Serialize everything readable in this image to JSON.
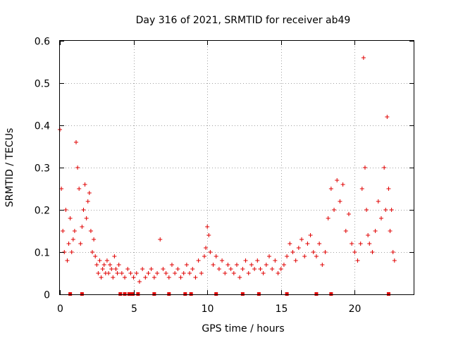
{
  "chart_data": {
    "type": "scatter",
    "title": "Day 316 of 2021, SRMTID for receiver ab49",
    "xlabel": "GPS time / hours",
    "ylabel": "SRMTID / TECUs",
    "xlim": [
      0,
      24
    ],
    "ylim": [
      0,
      0.6
    ],
    "x_ticks": [
      0,
      5,
      10,
      15,
      20
    ],
    "y_ticks": [
      0,
      0.1,
      0.2,
      0.3,
      0.4,
      0.5,
      0.6
    ],
    "x_tick_labels": [
      "0",
      "5",
      "10",
      "15",
      "20"
    ],
    "y_tick_labels": [
      "0",
      "0.1",
      "0.2",
      "0.3",
      "0.4",
      "0.5",
      "0.6"
    ],
    "grid": true,
    "marker": "plus",
    "color": "#e00000",
    "series": [
      {
        "name": "SRMTID",
        "x": [
          0.0,
          0.1,
          0.2,
          0.3,
          0.4,
          0.5,
          0.6,
          0.7,
          0.8,
          0.9,
          1.0,
          1.1,
          1.2,
          1.3,
          1.4,
          1.5,
          1.6,
          1.7,
          1.8,
          1.9,
          2.0,
          2.1,
          2.2,
          2.3,
          2.4,
          2.5,
          2.6,
          2.7,
          2.8,
          2.9,
          3.0,
          3.1,
          3.2,
          3.3,
          3.4,
          3.5,
          3.6,
          3.7,
          3.8,
          3.9,
          4.0,
          4.2,
          4.4,
          4.6,
          4.8,
          5.0,
          5.2,
          5.4,
          5.6,
          5.8,
          6.0,
          6.2,
          6.4,
          6.6,
          6.8,
          7.0,
          7.2,
          7.4,
          7.6,
          7.8,
          8.0,
          8.2,
          8.4,
          8.6,
          8.8,
          9.0,
          9.2,
          9.4,
          9.6,
          9.8,
          9.9,
          10.0,
          10.1,
          10.2,
          10.4,
          10.6,
          10.8,
          11.0,
          11.2,
          11.4,
          11.6,
          11.8,
          12.0,
          12.2,
          12.4,
          12.6,
          12.8,
          13.0,
          13.2,
          13.4,
          13.6,
          13.8,
          14.0,
          14.2,
          14.4,
          14.6,
          14.8,
          15.0,
          15.2,
          15.4,
          15.6,
          15.8,
          16.0,
          16.2,
          16.4,
          16.6,
          16.8,
          17.0,
          17.2,
          17.4,
          17.6,
          17.8,
          18.0,
          18.2,
          18.4,
          18.6,
          18.8,
          19.0,
          19.2,
          19.4,
          19.6,
          19.8,
          20.0,
          20.2,
          20.4,
          20.5,
          20.6,
          20.7,
          20.8,
          20.9,
          21.0,
          21.2,
          21.4,
          21.6,
          21.8,
          22.0,
          22.1,
          22.2,
          22.3,
          22.4,
          22.5,
          22.6,
          22.7
        ],
        "y": [
          0.39,
          0.25,
          0.15,
          0.1,
          0.2,
          0.08,
          0.12,
          0.18,
          0.1,
          0.13,
          0.15,
          0.36,
          0.3,
          0.25,
          0.12,
          0.16,
          0.2,
          0.26,
          0.18,
          0.22,
          0.24,
          0.15,
          0.1,
          0.13,
          0.09,
          0.07,
          0.05,
          0.08,
          0.04,
          0.06,
          0.07,
          0.05,
          0.08,
          0.05,
          0.07,
          0.06,
          0.04,
          0.09,
          0.06,
          0.05,
          0.07,
          0.05,
          0.04,
          0.06,
          0.05,
          0.04,
          0.05,
          0.03,
          0.06,
          0.04,
          0.05,
          0.06,
          0.04,
          0.05,
          0.13,
          0.06,
          0.05,
          0.04,
          0.07,
          0.05,
          0.06,
          0.04,
          0.05,
          0.07,
          0.05,
          0.06,
          0.04,
          0.08,
          0.05,
          0.09,
          0.11,
          0.16,
          0.14,
          0.1,
          0.07,
          0.09,
          0.06,
          0.08,
          0.05,
          0.07,
          0.06,
          0.05,
          0.07,
          0.04,
          0.06,
          0.08,
          0.05,
          0.07,
          0.06,
          0.08,
          0.06,
          0.05,
          0.07,
          0.09,
          0.06,
          0.08,
          0.05,
          0.06,
          0.07,
          0.09,
          0.12,
          0.1,
          0.08,
          0.11,
          0.13,
          0.09,
          0.12,
          0.14,
          0.1,
          0.09,
          0.12,
          0.07,
          0.1,
          0.18,
          0.25,
          0.2,
          0.27,
          0.22,
          0.26,
          0.15,
          0.19,
          0.12,
          0.1,
          0.08,
          0.12,
          0.25,
          0.56,
          0.3,
          0.2,
          0.14,
          0.12,
          0.1,
          0.15,
          0.22,
          0.18,
          0.3,
          0.2,
          0.42,
          0.25,
          0.15,
          0.2,
          0.1,
          0.08
        ]
      }
    ],
    "baseline_marks_x": [
      0.7,
      1.5,
      4.1,
      4.4,
      4.7,
      4.85,
      4.95,
      5.3,
      6.4,
      7.4,
      8.5,
      8.9,
      10.6,
      12.4,
      13.5,
      15.4,
      17.4,
      18.4,
      22.3
    ]
  }
}
